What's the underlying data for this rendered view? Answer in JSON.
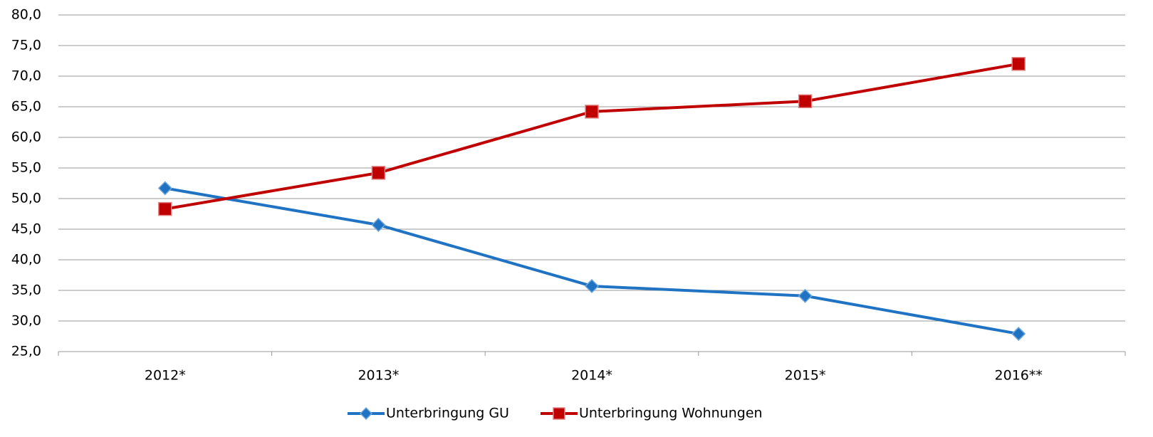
{
  "chart_data": {
    "type": "line",
    "categories": [
      "2012*",
      "2013*",
      "2014*",
      "2015*",
      "2016**"
    ],
    "series": [
      {
        "name": "Unterbringung GU",
        "color": "#1f73c2",
        "marker": "diamond",
        "values": [
          51.7,
          45.7,
          35.7,
          34.1,
          27.9
        ]
      },
      {
        "name": "Unterbringung Wohnungen",
        "color": "#c00000",
        "marker": "square",
        "values": [
          48.3,
          54.2,
          64.2,
          65.9,
          72.0
        ]
      }
    ],
    "ylim": [
      25,
      80
    ],
    "yticks": [
      {
        "value": 25,
        "label": "25,0"
      },
      {
        "value": 30,
        "label": "30,0"
      },
      {
        "value": 35,
        "label": "35,0"
      },
      {
        "value": 40,
        "label": "40,0"
      },
      {
        "value": 45,
        "label": "45,0"
      },
      {
        "value": 50,
        "label": "50,0"
      },
      {
        "value": 55,
        "label": "55,0"
      },
      {
        "value": 60,
        "label": "60,0"
      },
      {
        "value": 65,
        "label": "65,0"
      },
      {
        "value": 70,
        "label": "70,0"
      },
      {
        "value": 75,
        "label": "75,0"
      },
      {
        "value": 80,
        "label": "80,0"
      }
    ],
    "grid": true,
    "legend": "bottom"
  }
}
